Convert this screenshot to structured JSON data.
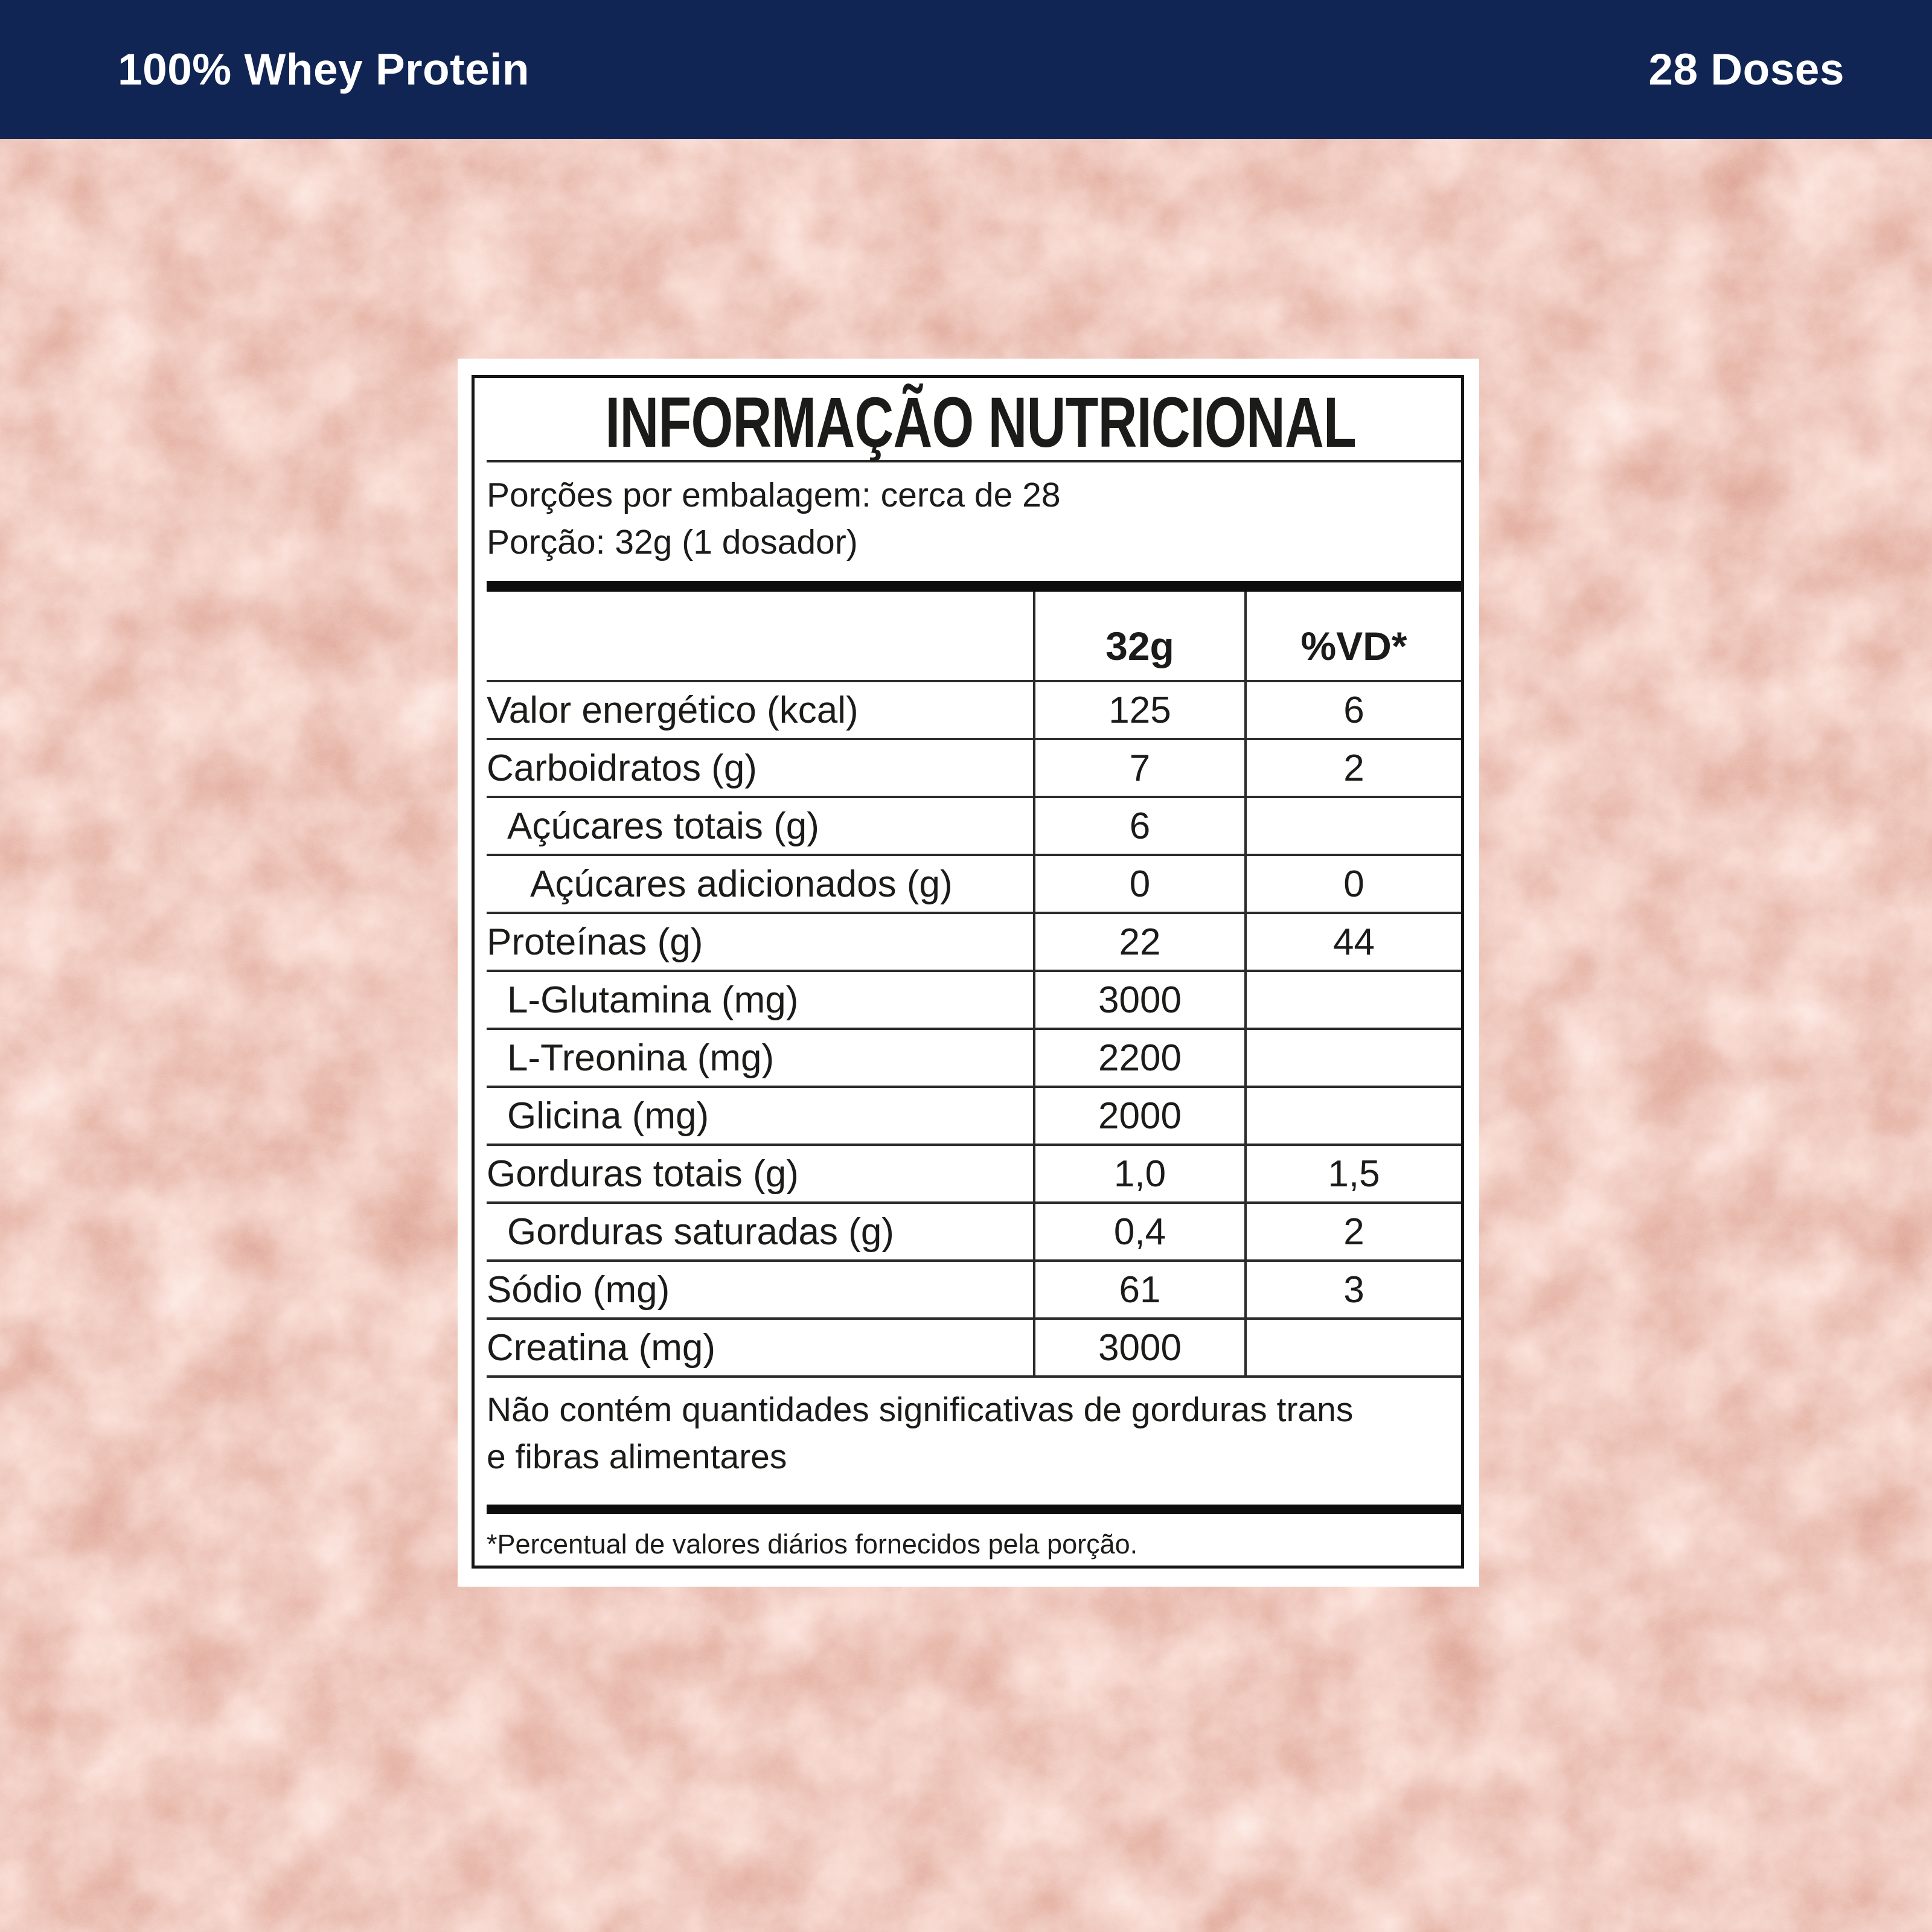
{
  "banner": {
    "product": "100% Whey Protein",
    "doses": "28 Doses"
  },
  "panel": {
    "title": "INFORMAÇÃO NUTRICIONAL",
    "servings_line": "Porções por embalagem: cerca de 28",
    "portion_line": "Porção: 32g (1 dosador)",
    "col_amount": "32g",
    "col_dv": "%VD*",
    "rows": [
      {
        "label": "Valor energético (kcal)",
        "amount": "125",
        "dv": "6",
        "indent": 0
      },
      {
        "label": "Carboidratos (g)",
        "amount": "7",
        "dv": "2",
        "indent": 0
      },
      {
        "label": "Açúcares totais (g)",
        "amount": "6",
        "dv": "",
        "indent": 1
      },
      {
        "label": "Açúcares adicionados (g)",
        "amount": "0",
        "dv": "0",
        "indent": 2
      },
      {
        "label": "Proteínas (g)",
        "amount": "22",
        "dv": "44",
        "indent": 0
      },
      {
        "label": "L-Glutamina (mg)",
        "amount": "3000",
        "dv": "",
        "indent": 1
      },
      {
        "label": "L-Treonina (mg)",
        "amount": "2200",
        "dv": "",
        "indent": 1
      },
      {
        "label": "Glicina (mg)",
        "amount": "2000",
        "dv": "",
        "indent": 1
      },
      {
        "label": "Gorduras totais (g)",
        "amount": "1,0",
        "dv": "1,5",
        "indent": 0
      },
      {
        "label": "Gorduras saturadas (g)",
        "amount": "0,4",
        "dv": "2",
        "indent": 1
      },
      {
        "label": "Sódio (mg)",
        "amount": "61",
        "dv": "3",
        "indent": 0
      },
      {
        "label": "Creatina (mg)",
        "amount": "3000",
        "dv": "",
        "indent": 0
      }
    ],
    "footnote": "Não contém quantidades significativas de gorduras trans e fibras alimentares",
    "dv_note": "*Percentual de valores diários fornecidos pela porção."
  },
  "colors": {
    "banner_navy": "#102553",
    "panel_bg": "#ffffff",
    "panel_border": "#161616",
    "table_line": "#2b2b2b",
    "text": "#1b1b19",
    "powder_dark": "#b56a57",
    "powder_mid": "#dd9583",
    "powder_light": "#f3c7b6",
    "powder_highlight": "#fdf2e6"
  }
}
